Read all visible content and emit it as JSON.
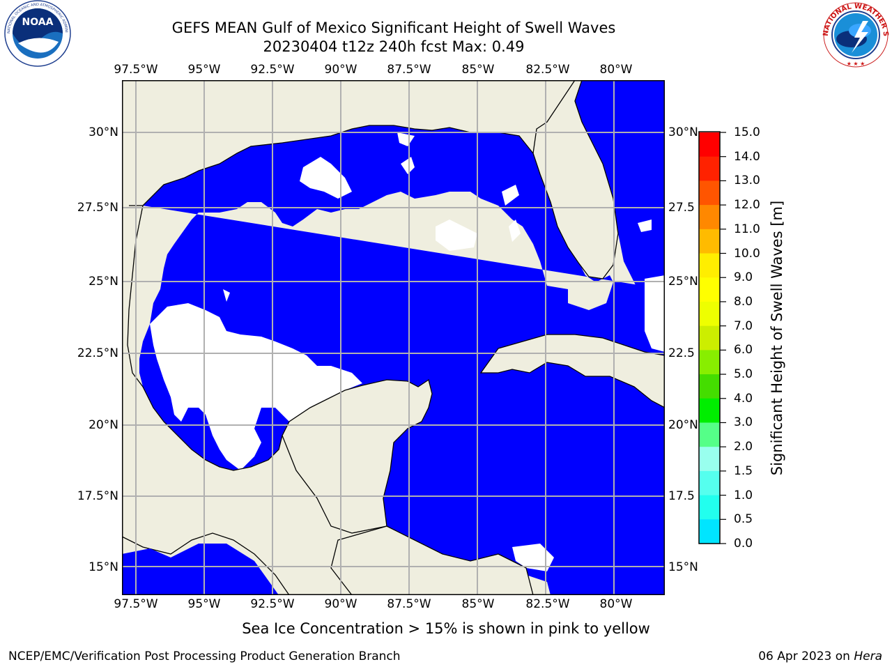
{
  "header": {
    "title_line1": "GEFS MEAN Gulf of Mexico Significant Height of Swell Waves",
    "title_line2": "20230404 t12z 240h fcst   Max: 0.49"
  },
  "logos": {
    "noaa": {
      "text": "NOAA",
      "ring_text": "NATIONAL OCEANIC AND ATMOSPHERIC ADMINISTRATION · U.S. DEPARTMENT OF COMMERCE"
    },
    "nws": {
      "ring_text": "NATIONAL WEATHER SERVICE"
    }
  },
  "map": {
    "lon_ticks": [
      "97.5°W",
      "95°W",
      "92.5°W",
      "90°W",
      "87.5°W",
      "85°W",
      "82.5°W",
      "80°W"
    ],
    "lat_ticks_left": [
      "30°N",
      "27.5°N",
      "25°N",
      "22.5°N",
      "20°N",
      "17.5°N",
      "15°N"
    ],
    "lat_ticks_right": [
      "30°N",
      "27.5",
      "25°N",
      "22.5",
      "20°N",
      "17.5",
      "15°N"
    ],
    "colors": {
      "ocean": "#0000ff",
      "land": "#efeedf",
      "undefined": "#ffffff",
      "grid": "#b0b0b0",
      "coast": "#000000"
    }
  },
  "colorbar": {
    "label": "Significant Height of Swell Waves [m]",
    "ticks": [
      "15.0",
      "14.0",
      "13.0",
      "12.0",
      "11.0",
      "10.0",
      "9.0",
      "8.0",
      "7.0",
      "6.0",
      "5.0",
      "4.0",
      "3.0",
      "2.0",
      "1.5",
      "1.0",
      "0.5",
      "0.0"
    ],
    "colors_bottom_to_top": [
      "#0000ff",
      "#0077ff",
      "#00e5ff",
      "#22ffee",
      "#55ffee",
      "#99ffee",
      "#55ff88",
      "#00ee00",
      "#44dd00",
      "#88ee00",
      "#ccee00",
      "#eeff00",
      "#ffff00",
      "#ffee00",
      "#ffbb00",
      "#ff8800",
      "#ff5500",
      "#ff2200",
      "#ff0000"
    ]
  },
  "note": "Sea Ice Concentration > 15% is shown in pink to yellow",
  "footer": {
    "left": "NCEP/EMC/Verification Post Processing Product Generation Branch",
    "date": "06 Apr 2023 on ",
    "machine": "Hera"
  }
}
